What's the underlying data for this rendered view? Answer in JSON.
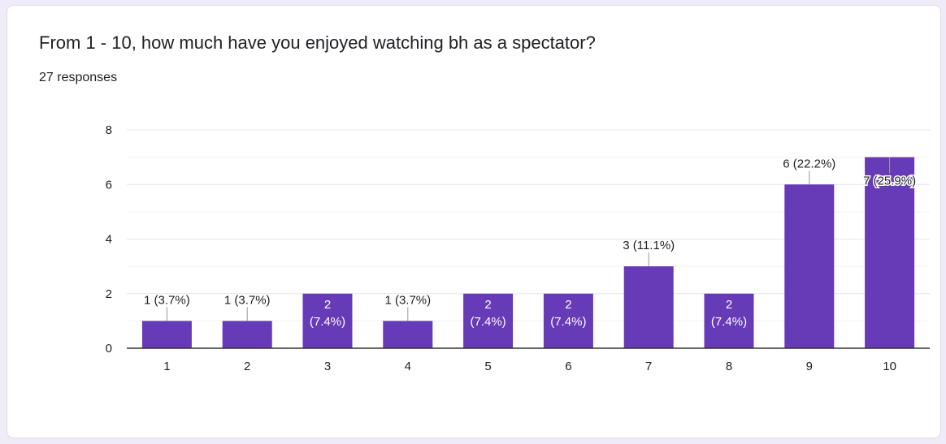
{
  "card": {
    "title": "From 1 - 10, how much have you enjoyed watching bh as a spectator?",
    "subtitle": "27 responses"
  },
  "colors": {
    "bar": "#673ab7",
    "page_background": "#f0ebf8",
    "grid": "#ebebeb",
    "axis": "#333333"
  },
  "chart_data": {
    "type": "bar",
    "categories": [
      "1",
      "2",
      "3",
      "4",
      "5",
      "6",
      "7",
      "8",
      "9",
      "10"
    ],
    "values": [
      1,
      1,
      2,
      1,
      2,
      2,
      3,
      2,
      6,
      7
    ],
    "data_labels": [
      "1 (3.7%)",
      "1 (3.7%)",
      "2 (7.4%)",
      "1 (3.7%)",
      "2 (7.4%)",
      "2 (7.4%)",
      "3 (11.1%)",
      "2 (7.4%)",
      "6 (22.2%)",
      "7 (25.9%)"
    ],
    "ylim": [
      0,
      8
    ],
    "yticks": [
      "0",
      "2",
      "4",
      "6",
      "8"
    ],
    "title": "",
    "xlabel": "",
    "ylabel": "",
    "grid": true,
    "legend": "none"
  }
}
